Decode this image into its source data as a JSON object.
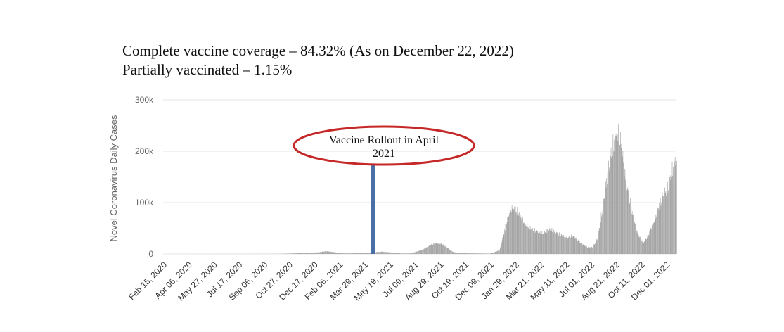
{
  "headline": {
    "line1": "Complete vaccine coverage – 84.32% (As on December 22, 2022)",
    "line2": "Partially vaccinated – 1.15%"
  },
  "colors": {
    "bars": "#9e9e9e",
    "rollout_marker": "#4a6fa5",
    "annotation_ellipse": "#c62828",
    "gridline": "#e6e6e6"
  },
  "chart_data": {
    "type": "bar",
    "title": "",
    "xlabel": "",
    "ylabel": "Novel Coronavirus Daily Cases",
    "ylim": [
      0,
      300000
    ],
    "yticks": [
      {
        "value": 0,
        "label": "0"
      },
      {
        "value": 100000,
        "label": "100k"
      },
      {
        "value": 200000,
        "label": "200k"
      },
      {
        "value": 300000,
        "label": "300k"
      }
    ],
    "x_start": "2020-02-15",
    "x_end": "2022-12-22",
    "xtick_labels": [
      "Feb 15, 2020",
      "Apr 06, 2020",
      "May 27, 2020",
      "Jul 17, 2020",
      "Sep 06, 2020",
      "Oct 27, 2020",
      "Dec 17, 2020",
      "Feb 06, 2021",
      "Mar 29, 2021",
      "May 19, 2021",
      "Jul 09, 2021",
      "Aug 29, 2021",
      "Oct 19, 2021",
      "Dec 09, 2021",
      "Jan 29, 2022",
      "Mar 21, 2022",
      "May 11, 2022",
      "Jul 01, 2022",
      "Aug 21, 2022",
      "Oct 11, 2022",
      "Dec 01, 2022"
    ],
    "grid": true,
    "series": [
      {
        "values": [
          {
            "date": "2020-02-15",
            "cases": 0
          },
          {
            "date": "2020-10-01",
            "cases": 200
          },
          {
            "date": "2020-11-01",
            "cases": 1000
          },
          {
            "date": "2020-12-01",
            "cases": 2000
          },
          {
            "date": "2020-12-25",
            "cases": 3500
          },
          {
            "date": "2021-01-10",
            "cases": 6000
          },
          {
            "date": "2021-01-25",
            "cases": 4000
          },
          {
            "date": "2021-02-15",
            "cases": 1200
          },
          {
            "date": "2021-03-15",
            "cases": 1500
          },
          {
            "date": "2021-04-15",
            "cases": 3000
          },
          {
            "date": "2021-05-01",
            "cases": 5000
          },
          {
            "date": "2021-05-20",
            "cases": 3500
          },
          {
            "date": "2021-06-10",
            "cases": 1000
          },
          {
            "date": "2021-07-01",
            "cases": 1200
          },
          {
            "date": "2021-07-25",
            "cases": 9000
          },
          {
            "date": "2021-08-15",
            "cases": 22000
          },
          {
            "date": "2021-08-28",
            "cases": 24000
          },
          {
            "date": "2021-09-10",
            "cases": 16000
          },
          {
            "date": "2021-09-25",
            "cases": 4000
          },
          {
            "date": "2021-10-15",
            "cases": 1500
          },
          {
            "date": "2021-12-10",
            "cases": 800
          },
          {
            "date": "2021-12-28",
            "cases": 8000
          },
          {
            "date": "2022-01-08",
            "cases": 55000
          },
          {
            "date": "2022-01-18",
            "cases": 95000
          },
          {
            "date": "2022-01-25",
            "cases": 102000
          },
          {
            "date": "2022-02-05",
            "cases": 88000
          },
          {
            "date": "2022-02-20",
            "cases": 62000
          },
          {
            "date": "2022-03-10",
            "cases": 50000
          },
          {
            "date": "2022-03-25",
            "cases": 45000
          },
          {
            "date": "2022-04-10",
            "cases": 53000
          },
          {
            "date": "2022-04-28",
            "cases": 42000
          },
          {
            "date": "2022-05-15",
            "cases": 35000
          },
          {
            "date": "2022-05-25",
            "cases": 40000
          },
          {
            "date": "2022-06-10",
            "cases": 25000
          },
          {
            "date": "2022-06-25",
            "cases": 14000
          },
          {
            "date": "2022-07-05",
            "cases": 15000
          },
          {
            "date": "2022-07-15",
            "cases": 35000
          },
          {
            "date": "2022-07-25",
            "cases": 100000
          },
          {
            "date": "2022-08-05",
            "cases": 180000
          },
          {
            "date": "2022-08-15",
            "cases": 235000
          },
          {
            "date": "2022-08-22",
            "cases": 252000
          },
          {
            "date": "2022-08-28",
            "cases": 258000
          },
          {
            "date": "2022-09-05",
            "cases": 200000
          },
          {
            "date": "2022-09-15",
            "cases": 130000
          },
          {
            "date": "2022-09-25",
            "cases": 80000
          },
          {
            "date": "2022-10-05",
            "cases": 42000
          },
          {
            "date": "2022-10-15",
            "cases": 25000
          },
          {
            "date": "2022-10-25",
            "cases": 38000
          },
          {
            "date": "2022-11-05",
            "cases": 70000
          },
          {
            "date": "2022-11-15",
            "cases": 100000
          },
          {
            "date": "2022-11-25",
            "cases": 128000
          },
          {
            "date": "2022-12-05",
            "cases": 145000
          },
          {
            "date": "2022-12-12",
            "cases": 175000
          },
          {
            "date": "2022-12-18",
            "cases": 200000
          },
          {
            "date": "2022-12-22",
            "cases": 195000
          }
        ]
      }
    ],
    "annotation": {
      "text_line1": "Vaccine Rollout in April",
      "text_line2": "2021",
      "marker_date": "2021-04-15",
      "marker_value": 175000
    }
  }
}
